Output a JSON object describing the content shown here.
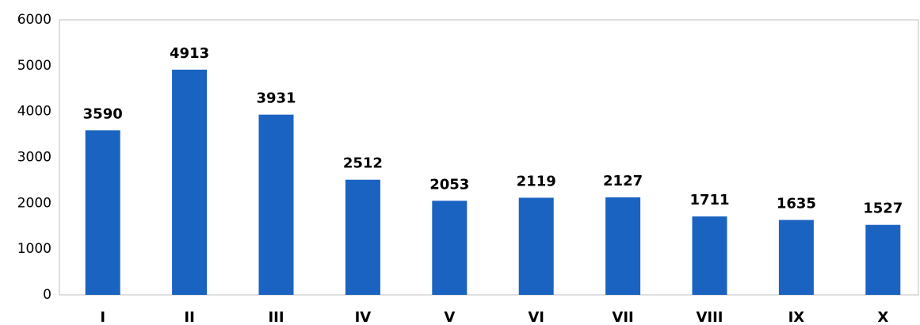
{
  "chart_data": {
    "type": "bar",
    "categories": [
      "I",
      "II",
      "III",
      "IV",
      "V",
      "VI",
      "VII",
      "VIII",
      "IX",
      "X"
    ],
    "values": [
      3590,
      4913,
      3931,
      2512,
      2053,
      2119,
      2127,
      1711,
      1635,
      1527
    ],
    "color": "#1b63c1",
    "ylim": [
      0,
      6000
    ],
    "yticks": [
      0,
      1000,
      2000,
      3000,
      4000,
      5000,
      6000
    ],
    "grid": false
  }
}
